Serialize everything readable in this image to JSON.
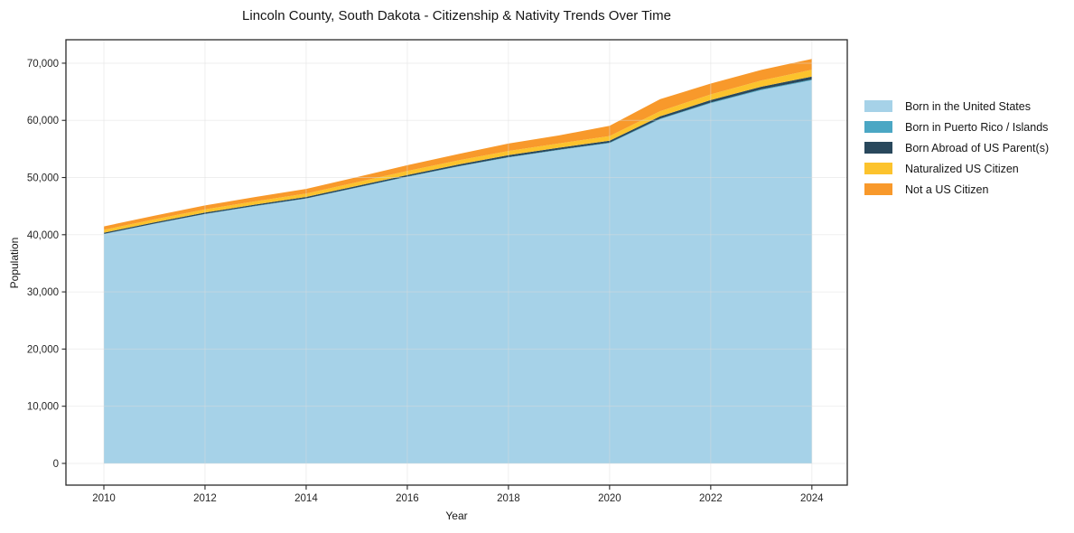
{
  "page": {
    "background": "#ffffff",
    "text_color": "#151515"
  },
  "chart_data": {
    "type": "area",
    "stacked": true,
    "title": "Lincoln County, South Dakota - Citizenship & Nativity Trends Over Time",
    "xlabel": "Year",
    "ylabel": "Population",
    "x": [
      2010,
      2011,
      2012,
      2013,
      2014,
      2015,
      2016,
      2017,
      2018,
      2019,
      2020,
      2021,
      2022,
      2023,
      2024
    ],
    "series": [
      {
        "name": "Born in the United States",
        "color": "#a6d2e8",
        "values": [
          40100,
          41900,
          43600,
          45000,
          46300,
          48200,
          50100,
          51900,
          53500,
          54800,
          56000,
          60200,
          63000,
          65300,
          67000
        ]
      },
      {
        "name": "Born in Puerto Rico / Islands",
        "color": "#4ba7c4",
        "values": [
          50,
          50,
          50,
          50,
          60,
          60,
          70,
          70,
          80,
          80,
          100,
          100,
          120,
          130,
          150
        ]
      },
      {
        "name": "Born Abroad of US Parent(s)",
        "color": "#29485c",
        "values": [
          200,
          210,
          220,
          230,
          250,
          260,
          280,
          300,
          320,
          340,
          350,
          400,
          420,
          450,
          500
        ]
      },
      {
        "name": "Naturalized US Citizen",
        "color": "#fcc32d",
        "values": [
          500,
          520,
          550,
          580,
          600,
          650,
          700,
          720,
          750,
          750,
          800,
          900,
          1000,
          1100,
          1200
        ]
      },
      {
        "name": "Not a US Citizen",
        "color": "#f8992b",
        "values": [
          600,
          650,
          700,
          750,
          800,
          900,
          1000,
          1100,
          1300,
          1400,
          1800,
          2100,
          1900,
          1850,
          1900
        ]
      }
    ],
    "xlim": [
      2009.25,
      2024.7
    ],
    "ylim": [
      -3800,
      74100
    ],
    "xticks": [
      2010,
      2012,
      2014,
      2016,
      2018,
      2020,
      2022,
      2024
    ],
    "xtick_labels": [
      "2010",
      "2012",
      "2014",
      "2016",
      "2018",
      "2020",
      "2022",
      "2024"
    ],
    "yticks": [
      0,
      10000,
      20000,
      30000,
      40000,
      50000,
      60000,
      70000
    ],
    "ytick_labels": [
      "0",
      "10,000",
      "20,000",
      "30,000",
      "40,000",
      "50,000",
      "60,000",
      "70,000"
    ],
    "grid": true,
    "grid_color": "#dcdcdc",
    "spine_color": "#2a2a2a",
    "legend_position": "outside-right"
  }
}
